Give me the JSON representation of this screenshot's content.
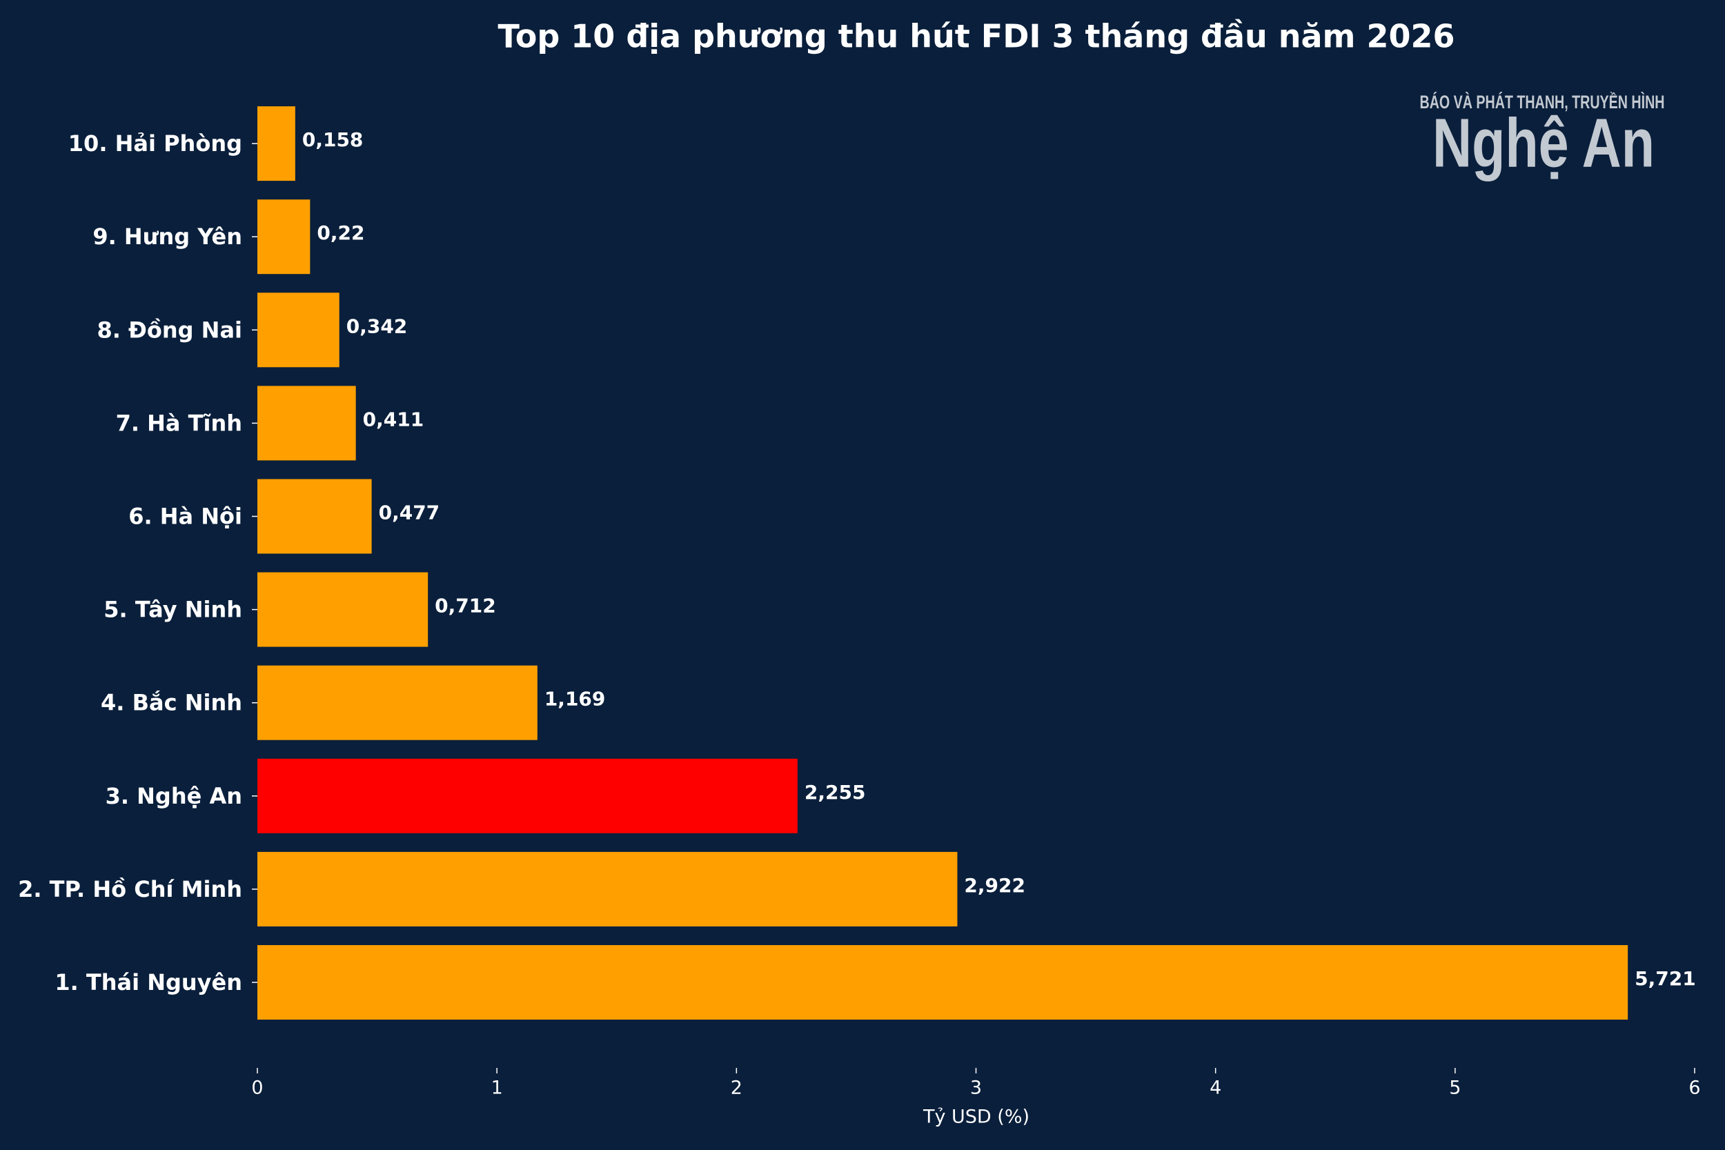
{
  "chart_data": {
    "type": "barh",
    "title": "Top 10 địa phương thu hút FDI 3 tháng đầu năm 2026",
    "xlabel": "Tỷ USD (%)",
    "categories": [
      "1. Thái Nguyên",
      "2. TP. Hồ Chí Minh",
      "3. Nghệ An",
      "4. Bắc Ninh",
      "5. Tây Ninh",
      "6. Hà Nội",
      "7. Hà Tĩnh",
      "8. Đồng Nai",
      "9. Hưng Yên",
      "10. Hải Phòng"
    ],
    "values": [
      5.721,
      2.922,
      2.255,
      1.169,
      0.712,
      0.477,
      0.411,
      0.342,
      0.22,
      0.158
    ],
    "value_labels": [
      "5,721",
      "2,922",
      "2,255",
      "1,169",
      "0,712",
      "0,477",
      "0,411",
      "0,342",
      "0,22",
      "0,158"
    ],
    "colors": [
      "#ffa000",
      "#ffa000",
      "#ff0000",
      "#ffa000",
      "#ffa000",
      "#ffa000",
      "#ffa000",
      "#ffa000",
      "#ffa000",
      "#ffa000"
    ],
    "xlim": [
      0,
      6
    ],
    "xticks": [
      0,
      1,
      2,
      3,
      4,
      5,
      6
    ],
    "logo": {
      "line1": "BÁO VÀ PHÁT THANH, TRUYỀN HÌNH",
      "line2": "Nghệ An"
    }
  }
}
